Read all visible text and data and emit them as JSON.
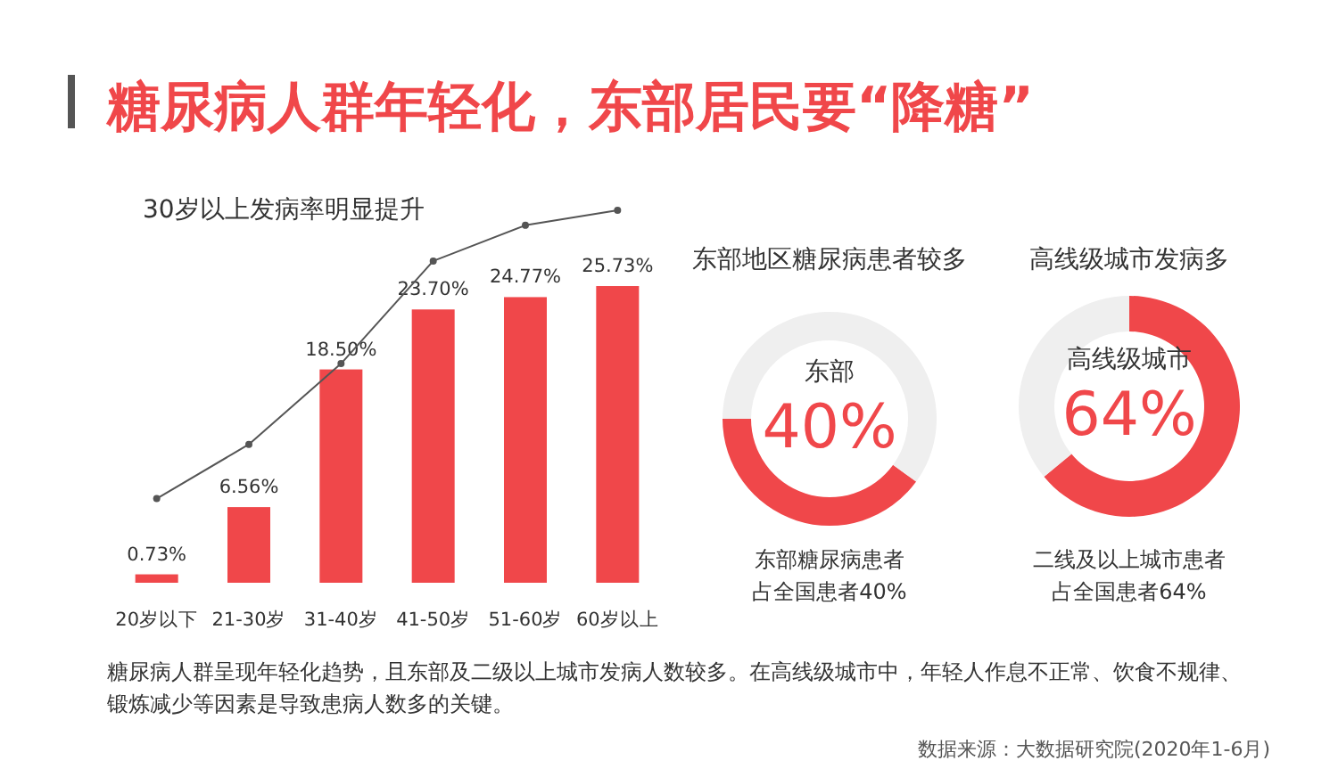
{
  "chart_data": [
    {
      "type": "other",
      "title": "糖尿病人群年轻化，东部居民要“降糖”",
      "annotations": [
        "糖尿病人群呈现年轻化趋势，且东部及二级以上城市发病人数较多。在高线级城市中，年轻人作息不正常、饮食不规律、锻炼减少等因素是导致患病人数多的关键。",
        "数据来源：大数据研究院(2020年1-6月)"
      ]
    },
    {
      "type": "bar",
      "title": "30岁以上发病率明显提升",
      "categories": [
        "20岁以下",
        "21-30岁",
        "31-40岁",
        "41-50岁",
        "51-60岁",
        "60岁以上"
      ],
      "marker": "circle",
      "series": [
        {
          "type": "bar",
          "color": "#f0474a",
          "values": [
            0.73,
            6.56,
            18.5,
            23.7,
            24.77,
            25.73
          ],
          "value_labels": [
            "0.73%",
            "6.56%",
            "18.50%",
            "23.70%",
            "24.77%",
            "25.73%"
          ]
        },
        {
          "type": "line",
          "color": "#555555",
          "values": [
            7.3,
            12.0,
            19.0,
            27.9,
            31.0,
            32.3
          ]
        }
      ]
    },
    {
      "type": "donut",
      "title": "东部地区糖尿病患者较多",
      "categories": [
        "东部",
        null
      ],
      "values": [
        40,
        60
      ],
      "colors": [
        "#f0474a",
        "#efefef"
      ],
      "value_labels": [
        "40%",
        null
      ],
      "annotations": [
        "东部糖尿病患者",
        "占全国患者40%"
      ]
    },
    {
      "type": "donut",
      "title": "高线级城市发病多",
      "categories": [
        "高线级城市",
        null
      ],
      "values": [
        64,
        36
      ],
      "colors": [
        "#f0474a",
        "#efefef"
      ],
      "value_labels": [
        "64%",
        null
      ],
      "annotations": [
        "二线及以上城市患者",
        "占全国患者64%"
      ]
    }
  ]
}
